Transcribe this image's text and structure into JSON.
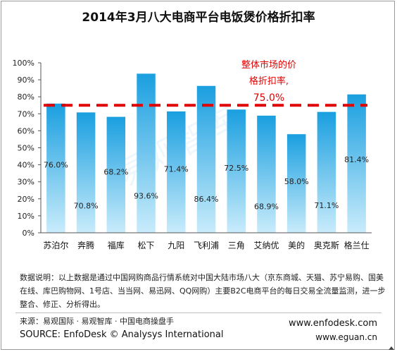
{
  "chart_data": {
    "type": "bar",
    "title": "2014年3月八大电商平台电饭煲价格折扣率",
    "categories": [
      "苏泊尔",
      "奔腾",
      "福库",
      "松下",
      "九阳",
      "飞利浦",
      "三角",
      "艾纳优",
      "美的",
      "奥克斯",
      "格兰仕"
    ],
    "values": [
      76.0,
      70.8,
      68.2,
      93.6,
      71.4,
      86.4,
      72.5,
      68.9,
      58.0,
      71.1,
      81.4
    ],
    "value_labels": [
      "76.0%",
      "70.8%",
      "68.2%",
      "93.6%",
      "71.4%",
      "86.4%",
      "72.5%",
      "68.9%",
      "58.0%",
      "71.1%",
      "81.4%"
    ],
    "y_ticks": [
      "0%",
      "10%",
      "20%",
      "30%",
      "40%",
      "50%",
      "60%",
      "70%",
      "80%",
      "90%",
      "100%"
    ],
    "ylim": [
      0,
      100
    ],
    "grid": false,
    "legend": "none",
    "reference_line": {
      "value": 75.0,
      "label_lines": [
        "整体市场的价",
        "格折扣率,",
        "75.0%"
      ],
      "color": "#e00000"
    },
    "bar_color_top": "#1a9fe0",
    "bar_color_bottom": "#c9ecfb",
    "watermark": "易观智库"
  },
  "notes": {
    "text": "数据说明：以上数据是通过中国网购商品行情系统对中国大陆市场八大（京东商城、天猫、苏宁易购、国美在线、库巴购物网、1号店、当当网、易迅网、QQ网购）主要B2C电商平台的每日交易全流量监测，进一步整合、修正、分析得出。"
  },
  "source": {
    "cn": "来源：易观国际 · 易观智库 · 中国电商操盘手",
    "en": "SOURCE: EnfoDesk © Analysys International",
    "url_1": "www.enfodesk.com",
    "url_2": "www.eguan.cn"
  }
}
